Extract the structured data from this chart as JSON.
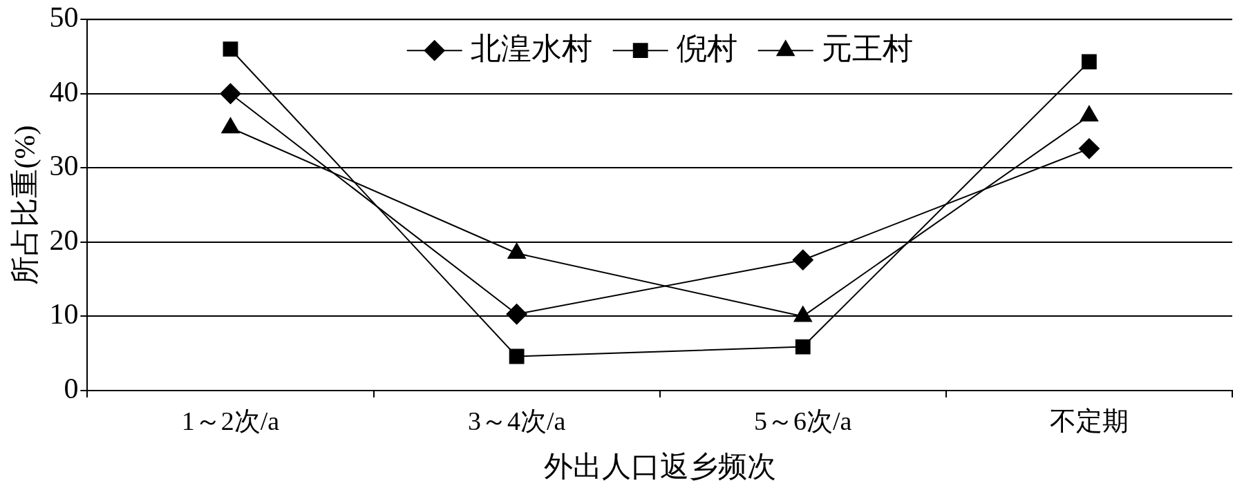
{
  "chart_data": {
    "type": "line",
    "xlabel": "外出人口返乡频次",
    "ylabel": "所占比重(%)",
    "categories": [
      "1～2次/a",
      "3～4次/a",
      "5～6次/a",
      "不定期"
    ],
    "series": [
      {
        "name": "北湟水村",
        "color": "#000000",
        "marker": "diamond",
        "values": [
          40,
          10.3,
          17.6,
          32.6
        ]
      },
      {
        "name": "倪村",
        "color": "#000000",
        "marker": "square",
        "values": [
          46,
          4.6,
          5.9,
          44.3
        ]
      },
      {
        "name": "元王村",
        "color": "#000000",
        "marker": "triangle",
        "values": [
          35.4,
          18.5,
          10,
          37
        ]
      }
    ],
    "ylim": [
      0,
      50
    ],
    "yticks": [
      0,
      10,
      20,
      30,
      40,
      50
    ],
    "grid": "y",
    "legend": "top",
    "line_style": "solid"
  }
}
